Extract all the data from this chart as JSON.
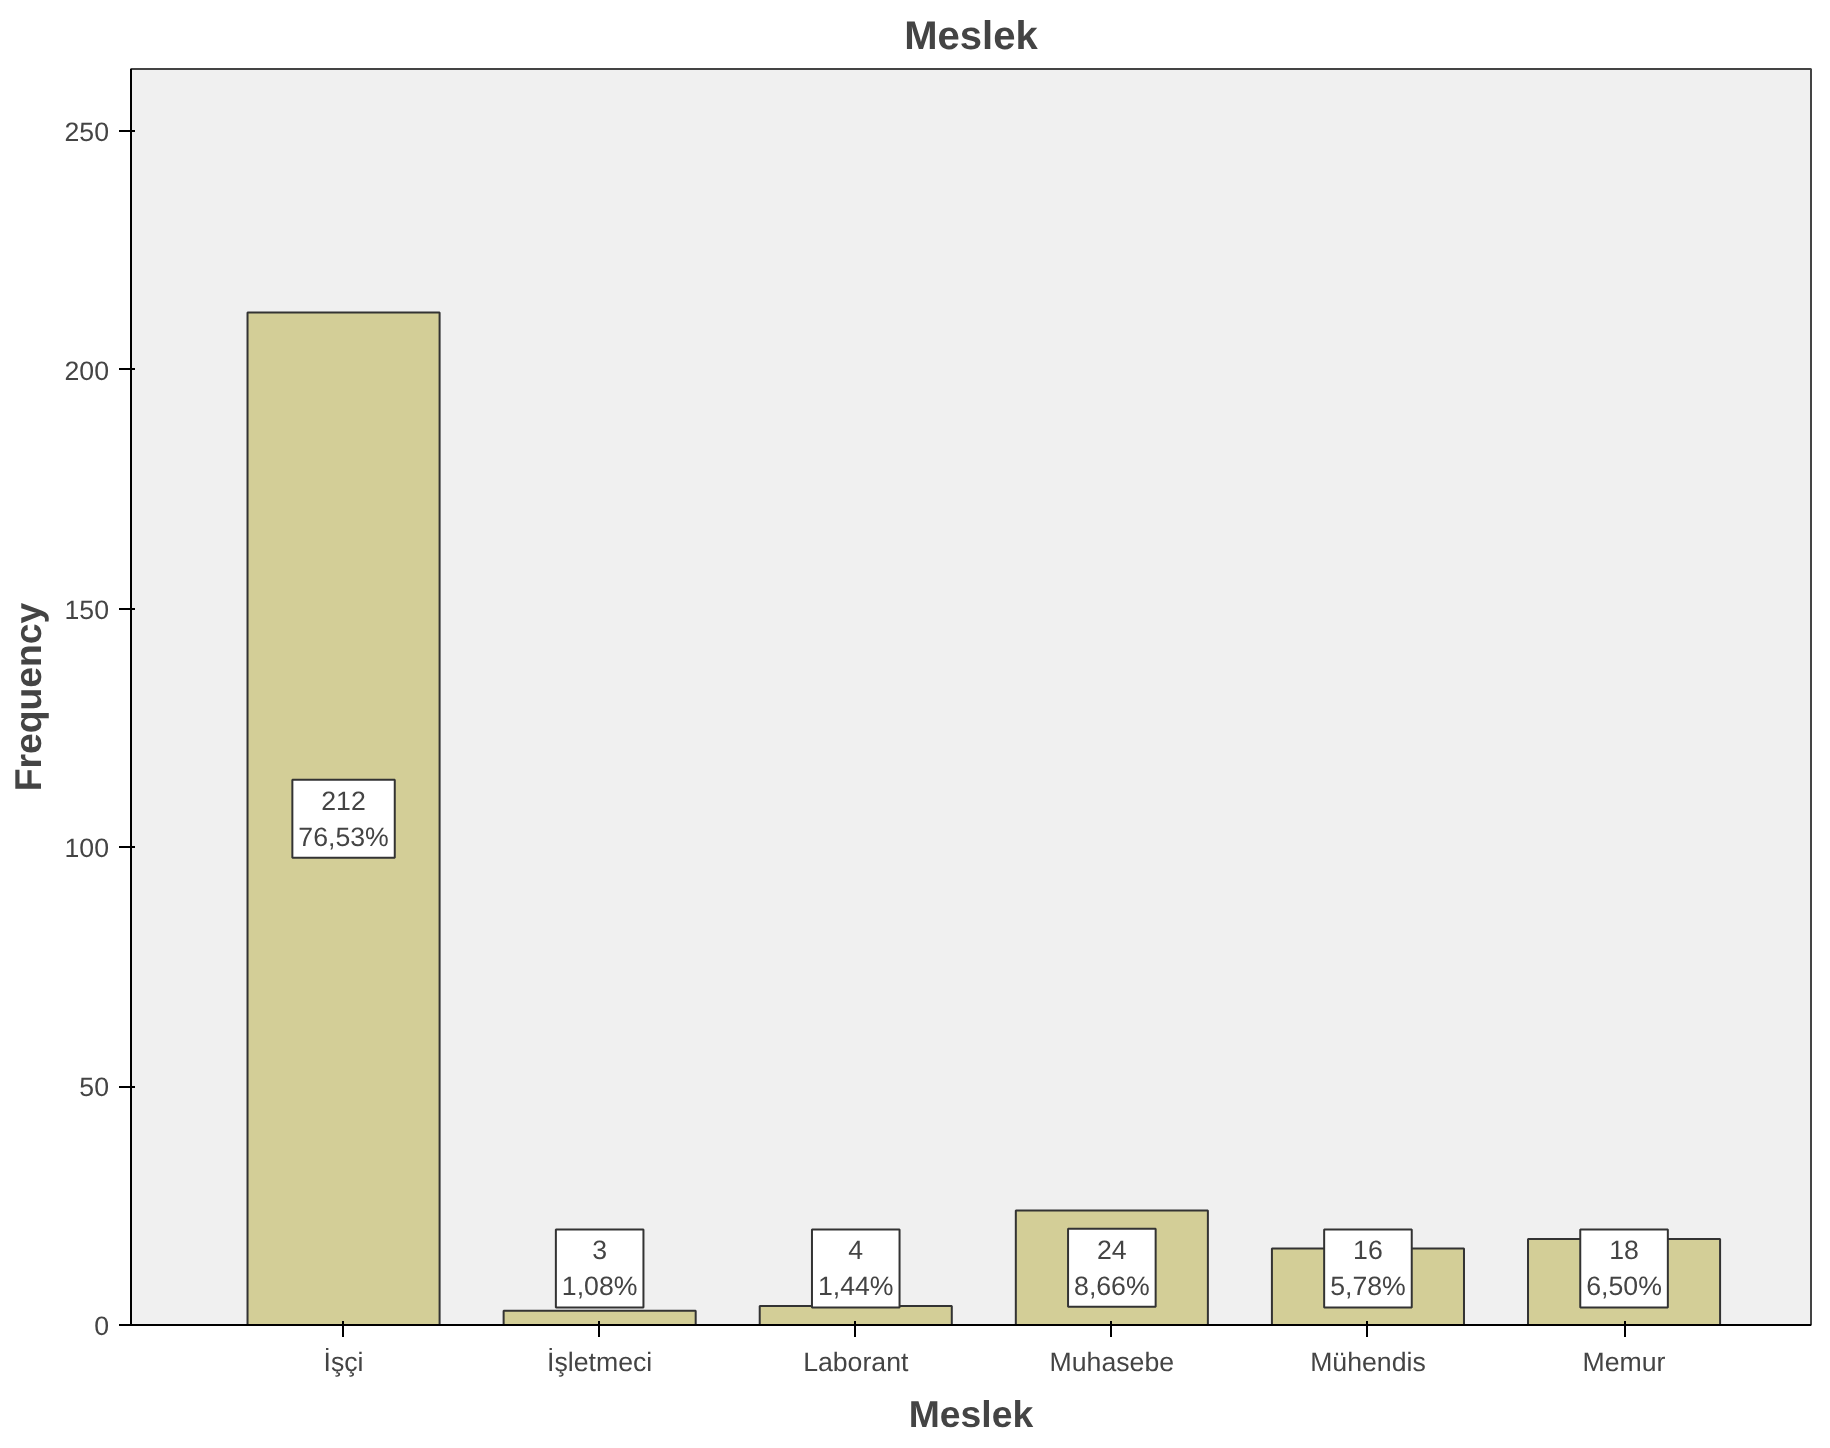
{
  "chart_data": {
    "type": "bar",
    "title": "Meslek",
    "xlabel": "Meslek",
    "ylabel": "Frequency",
    "categories": [
      "İşçi",
      "İşletmeci",
      "Laborant",
      "Muhasebe",
      "Mühendis",
      "Memur"
    ],
    "values": [
      212,
      3,
      4,
      24,
      16,
      18
    ],
    "value_labels": [
      "212\n76,53%",
      "3\n1,08%",
      "4\n1,44%",
      "24\n8,66%",
      "16\n5,78%",
      "18\n6,50%"
    ],
    "color": "#d3ce97",
    "ylim": [
      0,
      263
    ],
    "yticks": [
      0,
      50,
      100,
      150,
      200,
      250
    ],
    "grid": false
  }
}
